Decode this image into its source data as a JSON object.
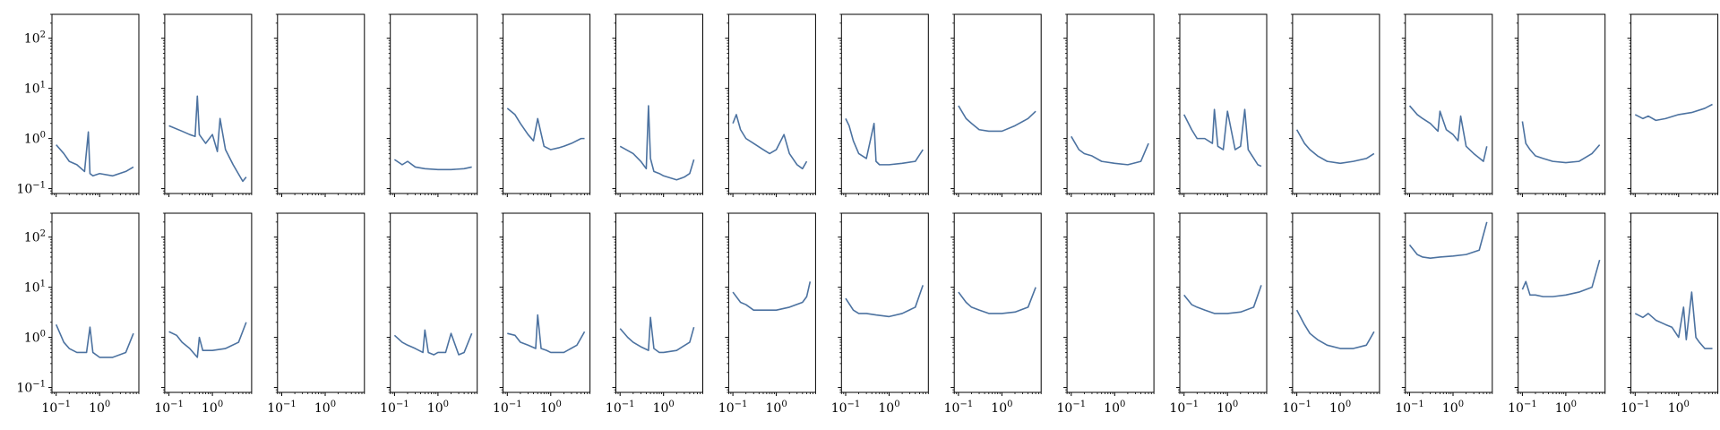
{
  "chart_data": {
    "type": "grid-line-loglog",
    "rows": 2,
    "cols": 15,
    "sharex": true,
    "sharey": true,
    "xscale": "log",
    "yscale": "log",
    "xlim": [
      0.08,
      8
    ],
    "ylim": [
      0.08,
      300
    ],
    "xticks": [
      {
        "value": 0.1,
        "base": "10",
        "exp": "−1"
      },
      {
        "value": 1,
        "base": "10",
        "exp": "0"
      }
    ],
    "yticks": [
      {
        "value": 0.1,
        "base": "10",
        "exp": "−1"
      },
      {
        "value": 1,
        "base": "10",
        "exp": "0"
      },
      {
        "value": 10,
        "base": "10",
        "exp": "1"
      },
      {
        "value": 100,
        "base": "10",
        "exp": "2"
      }
    ],
    "line_color": "#4c72a0",
    "panels": [
      [
        {
          "empty": false,
          "x": [
            0.1,
            0.15,
            0.2,
            0.3,
            0.45,
            0.55,
            0.6,
            0.7,
            1.0,
            2.0,
            4.0,
            6.0
          ],
          "y": [
            0.75,
            0.5,
            0.35,
            0.3,
            0.22,
            1.35,
            0.2,
            0.18,
            0.2,
            0.18,
            0.22,
            0.27
          ]
        },
        {
          "empty": false,
          "x": [
            0.1,
            0.2,
            0.3,
            0.4,
            0.45,
            0.5,
            0.7,
            1.0,
            1.3,
            1.5,
            2.0,
            3.0,
            5.0,
            6.0
          ],
          "y": [
            1.8,
            1.4,
            1.2,
            1.1,
            7.0,
            1.2,
            0.8,
            1.2,
            0.55,
            2.5,
            0.6,
            0.3,
            0.14,
            0.17
          ]
        },
        {
          "empty": true,
          "x": [],
          "y": []
        },
        {
          "empty": false,
          "x": [
            0.1,
            0.15,
            0.2,
            0.3,
            0.5,
            1.0,
            2.0,
            4.0,
            6.0
          ],
          "y": [
            0.38,
            0.3,
            0.35,
            0.27,
            0.25,
            0.24,
            0.24,
            0.25,
            0.27
          ]
        },
        {
          "empty": false,
          "x": [
            0.1,
            0.15,
            0.2,
            0.3,
            0.4,
            0.5,
            0.7,
            1.0,
            1.5,
            2.0,
            3.0,
            5.0,
            6.0
          ],
          "y": [
            4.0,
            3.0,
            2.0,
            1.2,
            0.9,
            2.5,
            0.7,
            0.6,
            0.65,
            0.7,
            0.8,
            1.0,
            1.0
          ]
        },
        {
          "empty": false,
          "x": [
            0.1,
            0.2,
            0.3,
            0.4,
            0.45,
            0.5,
            0.6,
            0.8,
            1.0,
            2.0,
            3.0,
            4.0,
            5.0
          ],
          "y": [
            0.7,
            0.5,
            0.35,
            0.25,
            4.5,
            0.4,
            0.22,
            0.2,
            0.18,
            0.15,
            0.17,
            0.2,
            0.38
          ]
        },
        {
          "empty": false,
          "x": [
            0.1,
            0.12,
            0.15,
            0.2,
            0.3,
            0.5,
            0.7,
            1.0,
            1.5,
            2.0,
            3.0,
            4.0,
            5.0
          ],
          "y": [
            2.0,
            3.0,
            1.5,
            1.0,
            0.8,
            0.6,
            0.5,
            0.6,
            1.2,
            0.5,
            0.3,
            0.25,
            0.35
          ]
        },
        {
          "empty": false,
          "x": [
            0.1,
            0.12,
            0.15,
            0.2,
            0.3,
            0.45,
            0.5,
            0.6,
            1.0,
            2.0,
            4.0,
            6.0
          ],
          "y": [
            2.5,
            1.8,
            0.9,
            0.5,
            0.4,
            2.0,
            0.35,
            0.3,
            0.3,
            0.32,
            0.35,
            0.6
          ]
        },
        {
          "empty": false,
          "x": [
            0.1,
            0.15,
            0.2,
            0.3,
            0.5,
            1.0,
            2.0,
            4.0,
            6.0
          ],
          "y": [
            4.5,
            2.5,
            2.0,
            1.5,
            1.4,
            1.4,
            1.8,
            2.5,
            3.5
          ]
        },
        {
          "empty": false,
          "x": [
            0.1,
            0.15,
            0.2,
            0.3,
            0.5,
            1.0,
            2.0,
            4.0,
            6.0
          ],
          "y": [
            1.1,
            0.6,
            0.5,
            0.45,
            0.35,
            0.32,
            0.3,
            0.35,
            0.8
          ]
        },
        {
          "empty": false,
          "x": [
            0.1,
            0.15,
            0.2,
            0.3,
            0.45,
            0.5,
            0.6,
            0.8,
            1.0,
            1.5,
            2.0,
            2.5,
            3.0,
            5.0,
            6.0
          ],
          "y": [
            3.0,
            1.5,
            1.0,
            1.0,
            0.8,
            3.8,
            0.7,
            0.6,
            3.5,
            0.6,
            0.7,
            3.8,
            0.6,
            0.3,
            0.28
          ]
        },
        {
          "empty": false,
          "x": [
            0.1,
            0.15,
            0.2,
            0.3,
            0.5,
            1.0,
            2.0,
            4.0,
            6.0
          ],
          "y": [
            1.5,
            0.8,
            0.6,
            0.45,
            0.35,
            0.32,
            0.35,
            0.4,
            0.5
          ]
        },
        {
          "empty": false,
          "x": [
            0.1,
            0.15,
            0.2,
            0.3,
            0.45,
            0.5,
            0.7,
            1.0,
            1.3,
            1.5,
            2.0,
            3.0,
            5.0,
            6.0
          ],
          "y": [
            4.5,
            3.0,
            2.5,
            2.0,
            1.4,
            3.5,
            1.5,
            1.2,
            0.9,
            2.8,
            0.7,
            0.5,
            0.35,
            0.7
          ]
        },
        {
          "empty": false,
          "x": [
            0.1,
            0.12,
            0.15,
            0.2,
            0.3,
            0.5,
            1.0,
            2.0,
            4.0,
            6.0
          ],
          "y": [
            2.2,
            0.8,
            0.6,
            0.45,
            0.4,
            0.35,
            0.33,
            0.35,
            0.5,
            0.75
          ]
        },
        {
          "empty": false,
          "x": [
            0.1,
            0.15,
            0.2,
            0.3,
            0.5,
            1.0,
            2.0,
            4.0,
            6.0
          ],
          "y": [
            3.0,
            2.5,
            2.8,
            2.3,
            2.5,
            3.0,
            3.3,
            4.0,
            4.8
          ]
        }
      ],
      [
        {
          "empty": false,
          "x": [
            0.1,
            0.15,
            0.2,
            0.3,
            0.5,
            0.6,
            0.7,
            1.0,
            2.0,
            4.0,
            6.0
          ],
          "y": [
            1.8,
            0.8,
            0.6,
            0.5,
            0.5,
            1.6,
            0.5,
            0.4,
            0.4,
            0.5,
            1.2
          ]
        },
        {
          "empty": false,
          "x": [
            0.1,
            0.15,
            0.2,
            0.3,
            0.45,
            0.5,
            0.6,
            0.7,
            1.0,
            2.0,
            4.0,
            6.0
          ],
          "y": [
            1.3,
            1.1,
            0.8,
            0.6,
            0.4,
            1.0,
            0.55,
            0.55,
            0.55,
            0.6,
            0.8,
            2.0
          ]
        },
        {
          "empty": true,
          "x": [],
          "y": []
        },
        {
          "empty": false,
          "x": [
            0.1,
            0.15,
            0.2,
            0.3,
            0.45,
            0.5,
            0.6,
            0.8,
            1.0,
            1.5,
            2.0,
            3.0,
            4.0,
            6.0
          ],
          "y": [
            1.1,
            0.8,
            0.7,
            0.6,
            0.5,
            1.4,
            0.5,
            0.45,
            0.5,
            0.5,
            1.2,
            0.45,
            0.5,
            1.2
          ]
        },
        {
          "empty": false,
          "x": [
            0.1,
            0.15,
            0.2,
            0.3,
            0.45,
            0.5,
            0.6,
            0.8,
            1.0,
            2.0,
            4.0,
            6.0
          ],
          "y": [
            1.2,
            1.1,
            0.8,
            0.7,
            0.6,
            2.8,
            0.6,
            0.55,
            0.5,
            0.5,
            0.7,
            1.3
          ]
        },
        {
          "empty": false,
          "x": [
            0.1,
            0.15,
            0.2,
            0.3,
            0.45,
            0.5,
            0.6,
            0.8,
            1.0,
            2.0,
            4.0,
            5.0
          ],
          "y": [
            1.5,
            1.0,
            0.8,
            0.65,
            0.55,
            2.5,
            0.6,
            0.5,
            0.5,
            0.55,
            0.8,
            1.6
          ]
        },
        {
          "empty": false,
          "x": [
            0.1,
            0.15,
            0.2,
            0.3,
            0.5,
            1.0,
            2.0,
            4.0,
            5.0,
            6.0
          ],
          "y": [
            8.0,
            5.0,
            4.5,
            3.5,
            3.5,
            3.5,
            4.0,
            5.0,
            6.5,
            13.0
          ]
        },
        {
          "empty": false,
          "x": [
            0.1,
            0.15,
            0.2,
            0.3,
            0.5,
            1.0,
            2.0,
            4.0,
            6.0
          ],
          "y": [
            6.0,
            3.5,
            3.0,
            3.0,
            2.8,
            2.6,
            3.0,
            4.0,
            11.0
          ]
        },
        {
          "empty": false,
          "x": [
            0.1,
            0.15,
            0.2,
            0.3,
            0.5,
            1.0,
            2.0,
            4.0,
            6.0
          ],
          "y": [
            8.0,
            5.0,
            4.0,
            3.5,
            3.0,
            3.0,
            3.2,
            4.0,
            10.0
          ]
        },
        {
          "empty": true,
          "x": [],
          "y": []
        },
        {
          "empty": false,
          "x": [
            0.1,
            0.15,
            0.2,
            0.3,
            0.5,
            1.0,
            2.0,
            4.0,
            6.0
          ],
          "y": [
            7.0,
            4.5,
            4.0,
            3.5,
            3.0,
            3.0,
            3.2,
            4.0,
            11.0
          ]
        },
        {
          "empty": false,
          "x": [
            0.1,
            0.15,
            0.2,
            0.3,
            0.5,
            1.0,
            2.0,
            4.0,
            6.0
          ],
          "y": [
            3.5,
            1.8,
            1.2,
            0.9,
            0.7,
            0.6,
            0.6,
            0.7,
            1.3
          ]
        },
        {
          "empty": false,
          "x": [
            0.1,
            0.15,
            0.2,
            0.3,
            0.5,
            1.0,
            2.0,
            4.0,
            6.0
          ],
          "y": [
            70.0,
            45.0,
            40.0,
            38.0,
            40.0,
            42.0,
            45.0,
            55.0,
            200.0
          ]
        },
        {
          "empty": false,
          "x": [
            0.1,
            0.12,
            0.15,
            0.2,
            0.3,
            0.5,
            1.0,
            2.0,
            4.0,
            6.0
          ],
          "y": [
            9.0,
            13.0,
            7.0,
            7.0,
            6.5,
            6.5,
            7.0,
            8.0,
            10.0,
            35.0
          ]
        },
        {
          "empty": false,
          "x": [
            0.1,
            0.15,
            0.2,
            0.3,
            0.5,
            0.7,
            1.0,
            1.3,
            1.5,
            2.0,
            2.5,
            3.0,
            4.0,
            6.0
          ],
          "y": [
            3.0,
            2.5,
            3.0,
            2.2,
            1.8,
            1.6,
            1.0,
            4.0,
            0.9,
            8.0,
            1.0,
            0.8,
            0.6,
            0.6
          ]
        }
      ]
    ]
  }
}
